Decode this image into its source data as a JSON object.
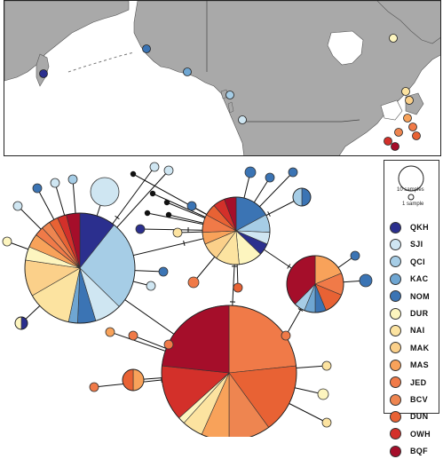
{
  "legend": {
    "size_large_label": "10 samples",
    "size_small_label": "1 sample",
    "items": [
      {
        "code": "QKH",
        "color": "#2b2f8e"
      },
      {
        "code": "SJI",
        "color": "#cfe6f2"
      },
      {
        "code": "QCI",
        "color": "#a6cde6"
      },
      {
        "code": "KAC",
        "color": "#6fa6d2"
      },
      {
        "code": "NOM",
        "color": "#3b74b4"
      },
      {
        "code": "DUR",
        "color": "#fdf5bf"
      },
      {
        "code": "NAI",
        "color": "#fce3a0"
      },
      {
        "code": "MAK",
        "color": "#fbd08a"
      },
      {
        "code": "MAS",
        "color": "#f8a25a"
      },
      {
        "code": "JED",
        "color": "#f07a48"
      },
      {
        "code": "BCV",
        "color": "#ee8550"
      },
      {
        "code": "DUN",
        "color": "#e86234"
      },
      {
        "code": "OWH",
        "color": "#d3302a"
      },
      {
        "code": "BQF",
        "color": "#a50e2a"
      }
    ]
  },
  "map": {
    "land_color": "#a9a9a9",
    "water_color": "#ffffff",
    "sample_sites": [
      {
        "site": "QKH",
        "color": "#2b2f8e"
      },
      {
        "site": "NOM",
        "color": "#3b74b4"
      },
      {
        "site": "KAC",
        "color": "#6fa6d2"
      },
      {
        "site": "QCI",
        "color": "#a6cde6"
      },
      {
        "site": "SJI",
        "color": "#cfe6f2"
      },
      {
        "site": "DUR",
        "color": "#fdf5bf"
      },
      {
        "site": "NAI",
        "color": "#fce3a0"
      },
      {
        "site": "MAK",
        "color": "#fbd08a"
      },
      {
        "site": "MAS",
        "color": "#f8a25a"
      },
      {
        "site": "JED",
        "color": "#f07a48"
      },
      {
        "site": "BCV",
        "color": "#ee8550"
      },
      {
        "site": "DUN",
        "color": "#e86234"
      },
      {
        "site": "OWH",
        "color": "#d3302a"
      },
      {
        "site": "BQF",
        "color": "#a50e2a"
      }
    ]
  },
  "network": {
    "haplotypes": [
      {
        "id": "H1",
        "slices": [
          [
            "QKH",
            8
          ],
          [
            "QCI",
            20
          ],
          [
            "SJI",
            6
          ],
          [
            "NOM",
            4
          ],
          [
            "KAC",
            2
          ],
          [
            "NAI",
            10
          ],
          [
            "MAK",
            8
          ],
          [
            "DUR",
            3
          ],
          [
            "MAS",
            3
          ],
          [
            "JED",
            2
          ],
          [
            "BCV",
            2
          ],
          [
            "DUN",
            2
          ],
          [
            "OWH",
            2
          ],
          [
            "BQF",
            3
          ]
        ]
      },
      {
        "id": "H2",
        "slices": [
          [
            "NOM",
            6
          ],
          [
            "QCI",
            3
          ],
          [
            "SJI",
            2
          ],
          [
            "QKH",
            2
          ],
          [
            "DUR",
            4
          ],
          [
            "NAI",
            4
          ],
          [
            "MAK",
            3
          ],
          [
            "MAS",
            2
          ],
          [
            "JED",
            3
          ],
          [
            "DUN",
            2
          ],
          [
            "OWH",
            2
          ],
          [
            "BQF",
            2
          ]
        ]
      },
      {
        "id": "H3",
        "slices": [
          [
            "JED",
            14
          ],
          [
            "DUN",
            10
          ],
          [
            "BCV",
            6
          ],
          [
            "MAS",
            4
          ],
          [
            "NAI",
            3
          ],
          [
            "DUR",
            1
          ],
          [
            "OWH",
            8
          ],
          [
            "BQF",
            14
          ]
        ]
      },
      {
        "id": "H4",
        "slices": [
          [
            "MAS",
            3
          ],
          [
            "JED",
            2
          ],
          [
            "DUN",
            2
          ],
          [
            "NOM",
            1
          ],
          [
            "KAC",
            1
          ],
          [
            "QCI",
            1
          ],
          [
            "BQF",
            6
          ]
        ]
      },
      {
        "id": "H5",
        "slices": [
          [
            "SJI",
            1
          ]
        ]
      },
      {
        "id": "H6",
        "slices": [
          [
            "NOM",
            1
          ],
          [
            "QCI",
            1
          ]
        ]
      },
      {
        "id": "H7",
        "slices": [
          [
            "MAS",
            1
          ],
          [
            "DUN",
            1
          ]
        ]
      },
      {
        "id": "H8",
        "slices": [
          [
            "QKH",
            1
          ],
          [
            "DUR",
            1
          ]
        ]
      }
    ]
  }
}
